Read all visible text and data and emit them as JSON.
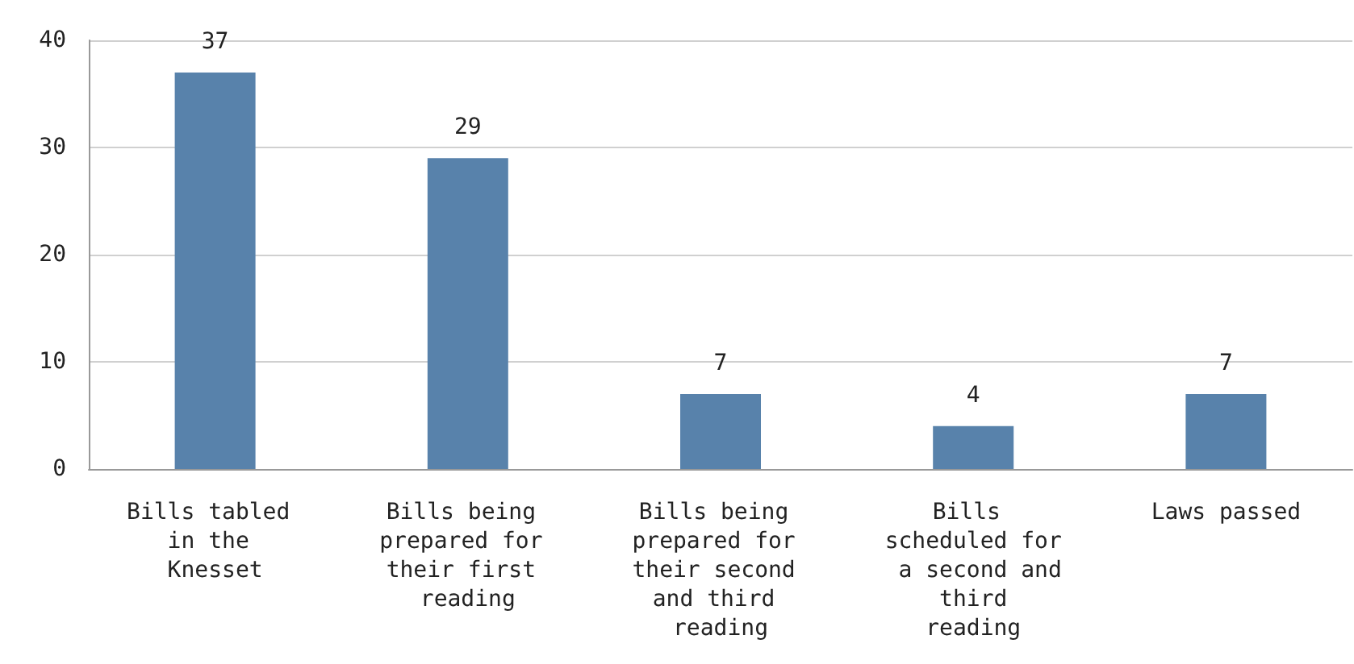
{
  "chart_data": {
    "type": "bar",
    "categories": [
      "Bills tabled in the Knesset",
      "Bills being prepared for their first reading",
      "Bills being prepared for their second and third reading",
      "Bills scheduled for a second and third reading",
      "Laws passed"
    ],
    "values": [
      37,
      29,
      7,
      4,
      7
    ],
    "color": "#5882ab",
    "ylim": [
      0,
      40
    ],
    "yticks": [
      0,
      10,
      20,
      30,
      40
    ],
    "grid": "y",
    "data_labels": true
  }
}
